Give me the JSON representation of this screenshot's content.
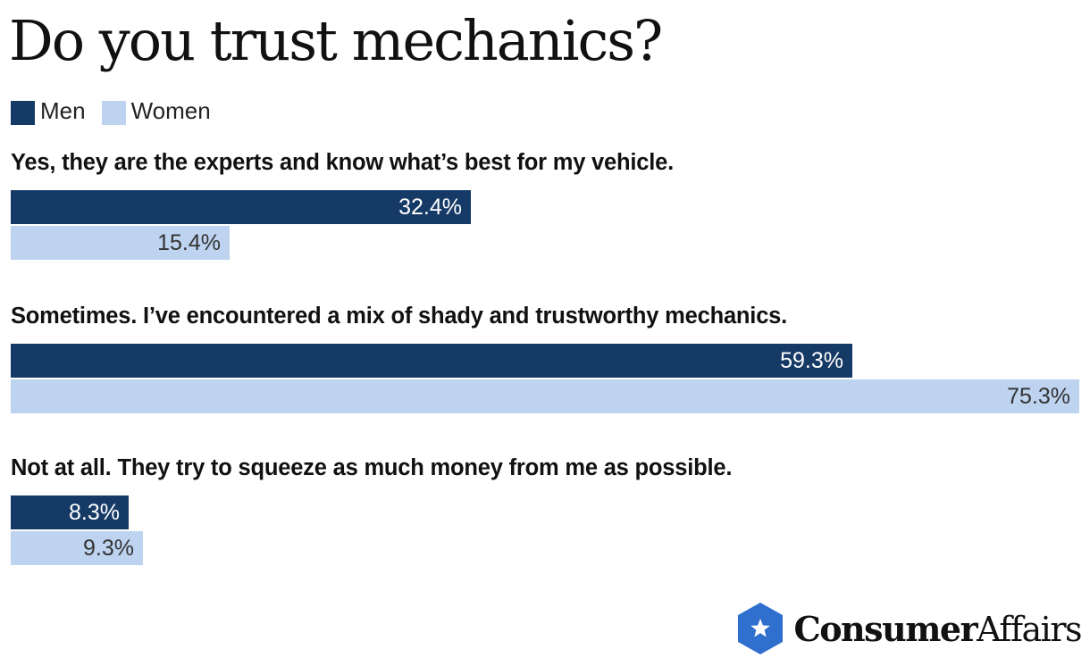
{
  "colors": {
    "men": "#163a66",
    "women": "#bdd3ef",
    "men_label": "#ffffff",
    "women_label": "#333333",
    "logo_blue": "#2f6fce"
  },
  "legend": [
    {
      "name": "Men"
    },
    {
      "name": "Women"
    }
  ],
  "logo": {
    "bold_part": "Consumer",
    "regular_part": "Affairs",
    "icon": "star-badge-icon"
  },
  "chart_data": {
    "type": "bar",
    "orientation": "horizontal",
    "title": "Do you trust mechanics?",
    "legend_position": "top-left",
    "grid": false,
    "value_suffix": "%",
    "xlim": [
      0,
      75.3
    ],
    "categories": [
      "Yes, they are the experts and know what’s best for my vehicle.",
      "Sometimes. I’ve encountered a mix of shady and trustworthy mechanics.",
      "Not at all. They try to squeeze as much money from me as possible."
    ],
    "series": [
      {
        "name": "Men",
        "values": [
          32.4,
          59.3,
          8.3
        ]
      },
      {
        "name": "Women",
        "values": [
          15.4,
          75.3,
          9.3
        ]
      }
    ],
    "data_labels": [
      [
        "32.4%",
        "15.4%"
      ],
      [
        "59.3%",
        "75.3%"
      ],
      [
        "8.3%",
        "9.3%"
      ]
    ]
  }
}
